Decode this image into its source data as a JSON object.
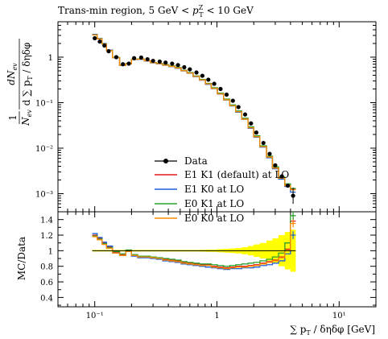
{
  "chart_data": [
    {
      "type": "line",
      "panel": "main",
      "title": "Trans-min region, 5 GeV < p_T^Z < 10 GeV",
      "title_parts": {
        "prefix": "Trans-min region, 5 GeV < ",
        "var": "p",
        "sub": "T",
        "sup": "Z",
        "suffix": " < 10 GeV"
      },
      "ylabel_parts": {
        "top": "dN",
        "top_sub": "ev",
        "bottom": "d ∑ p",
        "bottom_sub": "T",
        "bottom_tail": " / δηδφ",
        "pre": "1",
        "pre_den": "N",
        "pre_den_sub": "ev"
      },
      "xscale": "log",
      "yscale": "log",
      "xlim": [
        0.05,
        20
      ],
      "ylim": [
        0.0004,
        6
      ],
      "y_ticks": [
        {
          "v": 0.001,
          "label": "10⁻³"
        },
        {
          "v": 0.01,
          "label": "10⁻²"
        },
        {
          "v": 0.1,
          "label": "10⁻¹"
        },
        {
          "v": 1,
          "label": "1"
        }
      ],
      "legend_position": "lower-left",
      "data": {
        "name": "Data",
        "x": [
          0.1,
          0.11,
          0.12,
          0.13,
          0.15,
          0.17,
          0.19,
          0.21,
          0.24,
          0.27,
          0.3,
          0.34,
          0.38,
          0.43,
          0.48,
          0.54,
          0.6,
          0.68,
          0.76,
          0.85,
          0.95,
          1.07,
          1.2,
          1.35,
          1.5,
          1.7,
          1.9,
          2.1,
          2.4,
          2.7,
          3.0,
          3.4,
          3.8,
          4.2
        ],
        "y": [
          2.6,
          2.2,
          1.8,
          1.35,
          1.0,
          0.7,
          0.72,
          0.95,
          0.98,
          0.9,
          0.83,
          0.8,
          0.76,
          0.72,
          0.67,
          0.6,
          0.54,
          0.46,
          0.39,
          0.32,
          0.26,
          0.2,
          0.15,
          0.11,
          0.08,
          0.055,
          0.035,
          0.022,
          0.013,
          0.0075,
          0.0042,
          0.0024,
          0.0015,
          0.0009
        ]
      },
      "series": [
        {
          "name": "E1 K1 (default) at LO",
          "color": "#e41a1c",
          "ratio": [
            1.2,
            1.16,
            1.1,
            1.05,
            0.98,
            0.95,
            1.0,
            0.94,
            0.92,
            0.92,
            0.91,
            0.9,
            0.89,
            0.88,
            0.87,
            0.85,
            0.84,
            0.83,
            0.82,
            0.82,
            0.8,
            0.79,
            0.78,
            0.79,
            0.8,
            0.8,
            0.81,
            0.82,
            0.84,
            0.86,
            0.88,
            0.92,
            1.02,
            1.38
          ]
        },
        {
          "name": "E1 K0 at LO",
          "color": "#1f5fd6",
          "ratio": [
            1.22,
            1.17,
            1.11,
            1.06,
            0.97,
            0.94,
            0.99,
            0.93,
            0.91,
            0.91,
            0.9,
            0.89,
            0.87,
            0.86,
            0.85,
            0.83,
            0.82,
            0.81,
            0.8,
            0.79,
            0.78,
            0.77,
            0.76,
            0.77,
            0.77,
            0.78,
            0.78,
            0.79,
            0.81,
            0.82,
            0.84,
            0.87,
            0.96,
            1.2
          ]
        },
        {
          "name": "E0 K1 at LO",
          "color": "#2ca02c",
          "ratio": [
            1.19,
            1.15,
            1.09,
            1.04,
            0.99,
            0.96,
            1.01,
            0.95,
            0.93,
            0.93,
            0.92,
            0.91,
            0.9,
            0.89,
            0.88,
            0.86,
            0.85,
            0.84,
            0.83,
            0.83,
            0.82,
            0.81,
            0.8,
            0.81,
            0.82,
            0.83,
            0.84,
            0.85,
            0.87,
            0.89,
            0.92,
            0.97,
            1.1,
            1.45
          ]
        },
        {
          "name": "E0 K0 at LO",
          "color": "#ff8c00",
          "ratio": [
            1.18,
            1.14,
            1.08,
            1.03,
            0.97,
            0.94,
            0.99,
            0.94,
            0.92,
            0.92,
            0.91,
            0.9,
            0.88,
            0.87,
            0.86,
            0.84,
            0.83,
            0.82,
            0.81,
            0.81,
            0.79,
            0.78,
            0.77,
            0.78,
            0.79,
            0.79,
            0.8,
            0.81,
            0.83,
            0.85,
            0.87,
            0.91,
            1.0,
            1.35
          ]
        }
      ]
    },
    {
      "type": "line",
      "panel": "ratio",
      "ylabel": "MC/Data",
      "xlabel_parts": {
        "sum": "∑ p",
        "sub": "T",
        "tail": " / δηδφ [GeV]"
      },
      "xscale": "log",
      "xlim": [
        0.05,
        20
      ],
      "ylim": [
        0.28,
        1.5
      ],
      "y_ticks": [
        {
          "v": 0.4,
          "label": "0.4"
        },
        {
          "v": 0.6,
          "label": "0.6"
        },
        {
          "v": 0.8,
          "label": "0.8"
        },
        {
          "v": 1.0,
          "label": "1"
        },
        {
          "v": 1.2,
          "label": "1.2"
        },
        {
          "v": 1.4,
          "label": "1.4"
        }
      ],
      "x_ticks": [
        {
          "v": 0.1,
          "label": "10⁻¹"
        },
        {
          "v": 1,
          "label": "1"
        },
        {
          "v": 10,
          "label": "10¹"
        }
      ],
      "band_color": "#ffff00",
      "band_halfwidth": [
        0.01,
        0.01,
        0.01,
        0.01,
        0.01,
        0.01,
        0.01,
        0.01,
        0.01,
        0.01,
        0.01,
        0.01,
        0.01,
        0.01,
        0.01,
        0.01,
        0.01,
        0.01,
        0.012,
        0.014,
        0.016,
        0.02,
        0.025,
        0.03,
        0.035,
        0.045,
        0.06,
        0.08,
        0.1,
        0.13,
        0.16,
        0.2,
        0.24,
        0.27
      ]
    }
  ]
}
